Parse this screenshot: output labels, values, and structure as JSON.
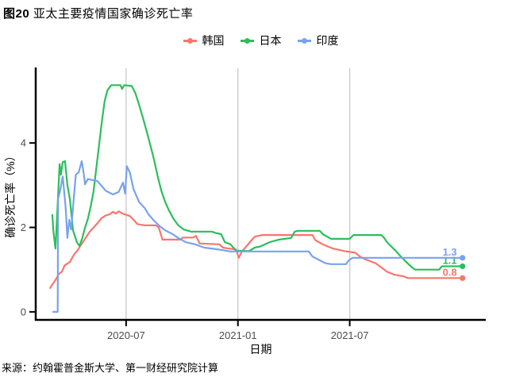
{
  "title": {
    "prefix": "图20",
    "text": "亚太主要疫情国家确诊死亡率"
  },
  "source": "来源：约翰霍普金斯大学、第一财经研究院计算",
  "colors": {
    "korea": "#F8766D",
    "japan": "#2BBE5C",
    "india": "#78A2EE",
    "grid": "#C9C9C9",
    "axis": "#000000",
    "tick_text": "#4D4D4D",
    "label_text": "#000000"
  },
  "chart_data": {
    "type": "line",
    "title": "图20 亚太主要疫情国家确诊死亡率",
    "xlabel": "日期",
    "ylabel": "确诊死亡率（%）",
    "x_unit": "months since 2020-01 (2020-01 = 0, decimal months)",
    "x_range": [
      1.15,
      25.3
    ],
    "y_range": [
      -0.19,
      5.77
    ],
    "x_ticks": [
      {
        "pos": 6,
        "label": "2020-07"
      },
      {
        "pos": 12,
        "label": "2021-01"
      },
      {
        "pos": 18,
        "label": "2021-07"
      }
    ],
    "y_ticks": [
      {
        "pos": 0,
        "label": "0"
      },
      {
        "pos": 2,
        "label": "2"
      },
      {
        "pos": 4,
        "label": "4"
      }
    ],
    "grid": "vertical-only",
    "legend_position": "top-center",
    "series": [
      {
        "name": "韩国",
        "key": "korea",
        "color": "#F8766D",
        "end_label": "0.8",
        "points": [
          [
            1.9,
            0.55
          ],
          [
            2.0,
            0.62
          ],
          [
            2.2,
            0.75
          ],
          [
            2.4,
            0.9
          ],
          [
            2.55,
            0.95
          ],
          [
            2.7,
            1.1
          ],
          [
            2.98,
            1.18
          ],
          [
            3.2,
            1.35
          ],
          [
            3.4,
            1.46
          ],
          [
            3.6,
            1.6
          ],
          [
            3.83,
            1.75
          ],
          [
            4.05,
            1.9
          ],
          [
            4.26,
            2.0
          ],
          [
            4.5,
            2.12
          ],
          [
            4.68,
            2.22
          ],
          [
            4.9,
            2.28
          ],
          [
            5.11,
            2.31
          ],
          [
            5.3,
            2.37
          ],
          [
            5.45,
            2.33
          ],
          [
            5.6,
            2.38
          ],
          [
            5.8,
            2.33
          ],
          [
            6.0,
            2.3
          ],
          [
            6.2,
            2.27
          ],
          [
            6.4,
            2.18
          ],
          [
            6.6,
            2.08
          ],
          [
            7.0,
            2.05
          ],
          [
            7.6,
            2.05
          ],
          [
            7.75,
            2.0
          ],
          [
            7.95,
            1.71
          ],
          [
            8.9,
            1.71
          ],
          [
            9.05,
            1.76
          ],
          [
            9.6,
            1.76
          ],
          [
            9.75,
            1.8
          ],
          [
            9.95,
            1.62
          ],
          [
            11.0,
            1.6
          ],
          [
            11.2,
            1.52
          ],
          [
            11.5,
            1.5
          ],
          [
            11.9,
            1.48
          ],
          [
            12.05,
            1.28
          ],
          [
            12.2,
            1.42
          ],
          [
            12.45,
            1.55
          ],
          [
            12.7,
            1.68
          ],
          [
            12.9,
            1.78
          ],
          [
            13.3,
            1.82
          ],
          [
            16.0,
            1.82
          ],
          [
            16.15,
            1.7
          ],
          [
            16.55,
            1.6
          ],
          [
            17.1,
            1.5
          ],
          [
            17.7,
            1.44
          ],
          [
            18.3,
            1.4
          ],
          [
            18.55,
            1.31
          ],
          [
            18.85,
            1.24
          ],
          [
            19.4,
            1.15
          ],
          [
            19.7,
            1.05
          ],
          [
            20.0,
            0.95
          ],
          [
            20.4,
            0.88
          ],
          [
            20.9,
            0.84
          ],
          [
            21.1,
            0.8
          ],
          [
            24.05,
            0.8
          ]
        ]
      },
      {
        "name": "日本",
        "key": "japan",
        "color": "#2BBE5C",
        "end_label": "1.1",
        "points": [
          [
            2.04,
            2.31
          ],
          [
            2.1,
            1.9
          ],
          [
            2.21,
            1.5
          ],
          [
            2.3,
            2.3
          ],
          [
            2.43,
            3.5
          ],
          [
            2.5,
            3.25
          ],
          [
            2.6,
            3.55
          ],
          [
            2.72,
            3.57
          ],
          [
            2.85,
            3.0
          ],
          [
            2.98,
            2.68
          ],
          [
            3.15,
            1.93
          ],
          [
            3.36,
            1.65
          ],
          [
            3.5,
            1.56
          ],
          [
            3.65,
            1.75
          ],
          [
            3.79,
            1.99
          ],
          [
            3.95,
            2.2
          ],
          [
            4.1,
            2.5
          ],
          [
            4.25,
            2.85
          ],
          [
            4.4,
            3.4
          ],
          [
            4.55,
            3.95
          ],
          [
            4.7,
            4.5
          ],
          [
            4.85,
            5.0
          ],
          [
            5.0,
            5.25
          ],
          [
            5.2,
            5.37
          ],
          [
            5.7,
            5.37
          ],
          [
            5.78,
            5.28
          ],
          [
            5.9,
            5.37
          ],
          [
            6.3,
            5.35
          ],
          [
            6.5,
            5.18
          ],
          [
            6.7,
            4.9
          ],
          [
            6.9,
            4.6
          ],
          [
            7.1,
            4.28
          ],
          [
            7.3,
            3.95
          ],
          [
            7.5,
            3.6
          ],
          [
            7.7,
            3.2
          ],
          [
            7.9,
            2.85
          ],
          [
            8.1,
            2.6
          ],
          [
            8.3,
            2.4
          ],
          [
            8.55,
            2.2
          ],
          [
            8.8,
            2.05
          ],
          [
            9.1,
            1.95
          ],
          [
            9.5,
            1.9
          ],
          [
            10.6,
            1.9
          ],
          [
            10.8,
            1.87
          ],
          [
            11.1,
            1.84
          ],
          [
            11.3,
            1.65
          ],
          [
            11.6,
            1.6
          ],
          [
            11.9,
            1.45
          ],
          [
            12.6,
            1.44
          ],
          [
            12.9,
            1.52
          ],
          [
            13.2,
            1.55
          ],
          [
            13.7,
            1.65
          ],
          [
            14.2,
            1.71
          ],
          [
            14.85,
            1.75
          ],
          [
            15.05,
            1.9
          ],
          [
            15.2,
            1.92
          ],
          [
            16.4,
            1.92
          ],
          [
            16.55,
            1.84
          ],
          [
            17.0,
            1.73
          ],
          [
            18.0,
            1.73
          ],
          [
            18.2,
            1.82
          ],
          [
            19.7,
            1.82
          ],
          [
            19.85,
            1.75
          ],
          [
            20.0,
            1.65
          ],
          [
            20.2,
            1.56
          ],
          [
            20.5,
            1.43
          ],
          [
            20.7,
            1.33
          ],
          [
            20.9,
            1.24
          ],
          [
            21.1,
            1.15
          ],
          [
            21.35,
            1.05
          ],
          [
            21.5,
            1.0
          ],
          [
            22.8,
            1.0
          ],
          [
            22.95,
            1.08
          ],
          [
            24.05,
            1.08
          ]
        ]
      },
      {
        "name": "印度",
        "key": "india",
        "color": "#78A2EE",
        "end_label": "1.3",
        "points": [
          [
            2.05,
            0
          ],
          [
            2.33,
            0
          ],
          [
            2.35,
            2.68
          ],
          [
            2.45,
            2.85
          ],
          [
            2.6,
            3.21
          ],
          [
            2.75,
            2.5
          ],
          [
            2.85,
            1.75
          ],
          [
            2.95,
            2.18
          ],
          [
            3.05,
            1.95
          ],
          [
            3.3,
            3.25
          ],
          [
            3.45,
            3.3
          ],
          [
            3.62,
            3.57
          ],
          [
            3.72,
            3.3
          ],
          [
            3.8,
            3.02
          ],
          [
            3.95,
            3.15
          ],
          [
            4.2,
            3.12
          ],
          [
            4.45,
            3.1
          ],
          [
            4.7,
            2.98
          ],
          [
            4.9,
            2.87
          ],
          [
            5.3,
            2.78
          ],
          [
            5.6,
            2.84
          ],
          [
            5.83,
            3.06
          ],
          [
            5.95,
            2.8
          ],
          [
            6.04,
            3.45
          ],
          [
            6.2,
            3.3
          ],
          [
            6.4,
            2.9
          ],
          [
            6.7,
            2.6
          ],
          [
            7.0,
            2.46
          ],
          [
            7.2,
            2.31
          ],
          [
            7.5,
            2.16
          ],
          [
            7.8,
            2.03
          ],
          [
            8.1,
            1.93
          ],
          [
            8.5,
            1.84
          ],
          [
            8.8,
            1.75
          ],
          [
            9.2,
            1.65
          ],
          [
            9.7,
            1.6
          ],
          [
            10.2,
            1.52
          ],
          [
            10.6,
            1.5
          ],
          [
            11.2,
            1.46
          ],
          [
            11.6,
            1.43
          ],
          [
            15.8,
            1.43
          ],
          [
            16.0,
            1.31
          ],
          [
            16.3,
            1.24
          ],
          [
            16.7,
            1.15
          ],
          [
            17.0,
            1.13
          ],
          [
            17.8,
            1.13
          ],
          [
            17.95,
            1.22
          ],
          [
            18.15,
            1.28
          ],
          [
            24.05,
            1.28
          ]
        ]
      }
    ]
  }
}
